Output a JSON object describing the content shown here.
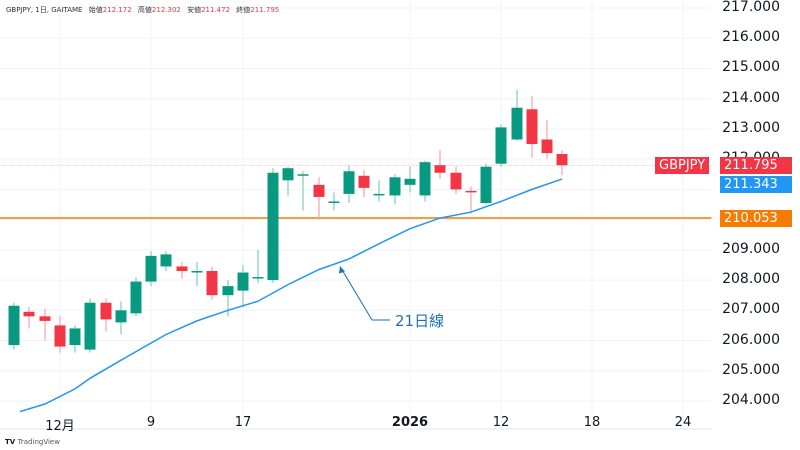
{
  "header": {
    "symbol": "GBPJPY, 1日, GAITAME",
    "open_label": "始値",
    "open": "212.172",
    "high_label": "高値",
    "high": "212.302",
    "low_label": "安値",
    "low": "211.472",
    "close_label": "終値",
    "close": "211.795"
  },
  "tags": {
    "symbol": "GBPJPY",
    "last_price": "211.795",
    "ma_value": "211.343",
    "hline_value": "210.053"
  },
  "annotation": "21日線",
  "footer": "TradingView",
  "colors": {
    "up": "#089981",
    "down": "#f23645",
    "ma": "#2196f3",
    "hline": "#f57c00",
    "grid": "#f0f3fa"
  },
  "chart_data": {
    "type": "candlestick",
    "title": "GBPJPY, 1日, GAITAME",
    "xlabel": "",
    "ylabel": "",
    "ylim": [
      203.6,
      217.2
    ],
    "yticks": [
      "217.000",
      "216.000",
      "215.000",
      "214.000",
      "213.000",
      "212.000",
      "211.000",
      "210.000",
      "209.000",
      "208.000",
      "207.000",
      "206.000",
      "205.000",
      "204.000"
    ],
    "xticks": [
      {
        "label": "12月",
        "x": 60
      },
      {
        "label": "9",
        "x": 151
      },
      {
        "label": "17",
        "x": 243
      },
      {
        "label": "2026",
        "x": 410,
        "bold": true
      },
      {
        "label": "12",
        "x": 501
      },
      {
        "label": "18",
        "x": 592
      },
      {
        "label": "24",
        "x": 683
      }
    ],
    "candles": [
      {
        "x": 14,
        "o": 205.85,
        "h": 207.25,
        "l": 205.7,
        "c": 207.15
      },
      {
        "x": 29,
        "o": 206.95,
        "h": 207.1,
        "l": 206.4,
        "c": 206.8
      },
      {
        "x": 45,
        "o": 206.8,
        "h": 207.05,
        "l": 206.0,
        "c": 206.65
      },
      {
        "x": 60,
        "o": 206.5,
        "h": 206.8,
        "l": 205.6,
        "c": 205.8
      },
      {
        "x": 75,
        "o": 205.85,
        "h": 206.5,
        "l": 205.6,
        "c": 206.4
      },
      {
        "x": 90,
        "o": 205.7,
        "h": 207.4,
        "l": 205.6,
        "c": 207.25
      },
      {
        "x": 106,
        "o": 207.25,
        "h": 207.4,
        "l": 206.3,
        "c": 206.7
      },
      {
        "x": 121,
        "o": 206.6,
        "h": 207.3,
        "l": 206.2,
        "c": 207.0
      },
      {
        "x": 136,
        "o": 206.9,
        "h": 208.1,
        "l": 206.8,
        "c": 207.95
      },
      {
        "x": 151,
        "o": 207.95,
        "h": 208.95,
        "l": 207.8,
        "c": 208.8
      },
      {
        "x": 166,
        "o": 208.45,
        "h": 208.95,
        "l": 208.3,
        "c": 208.85
      },
      {
        "x": 182,
        "o": 208.45,
        "h": 208.6,
        "l": 208.05,
        "c": 208.3
      },
      {
        "x": 197,
        "o": 208.3,
        "h": 208.6,
        "l": 207.8,
        "c": 208.3
      },
      {
        "x": 212,
        "o": 208.3,
        "h": 208.45,
        "l": 207.35,
        "c": 207.5
      },
      {
        "x": 228,
        "o": 207.5,
        "h": 208.0,
        "l": 206.8,
        "c": 207.8
      },
      {
        "x": 243,
        "o": 207.65,
        "h": 208.5,
        "l": 207.1,
        "c": 208.25
      },
      {
        "x": 258,
        "o": 208.1,
        "h": 209.0,
        "l": 207.9,
        "c": 208.1
      },
      {
        "x": 273,
        "o": 208.0,
        "h": 211.7,
        "l": 207.9,
        "c": 211.55
      },
      {
        "x": 288,
        "o": 211.3,
        "h": 211.75,
        "l": 210.8,
        "c": 211.7
      },
      {
        "x": 303,
        "o": 211.5,
        "h": 211.6,
        "l": 210.3,
        "c": 211.5
      },
      {
        "x": 319,
        "o": 211.15,
        "h": 211.4,
        "l": 210.0,
        "c": 210.75
      },
      {
        "x": 334,
        "o": 210.6,
        "h": 210.9,
        "l": 210.3,
        "c": 210.6
      },
      {
        "x": 349,
        "o": 210.85,
        "h": 211.8,
        "l": 210.55,
        "c": 211.6
      },
      {
        "x": 364,
        "o": 211.45,
        "h": 211.65,
        "l": 210.75,
        "c": 211.05
      },
      {
        "x": 379,
        "o": 210.85,
        "h": 211.3,
        "l": 210.6,
        "c": 210.85
      },
      {
        "x": 395,
        "o": 210.8,
        "h": 211.5,
        "l": 210.5,
        "c": 211.4
      },
      {
        "x": 410,
        "o": 211.15,
        "h": 211.75,
        "l": 210.9,
        "c": 211.35
      },
      {
        "x": 425,
        "o": 210.8,
        "h": 211.95,
        "l": 210.6,
        "c": 211.9
      },
      {
        "x": 440,
        "o": 211.8,
        "h": 212.3,
        "l": 211.35,
        "c": 211.55
      },
      {
        "x": 456,
        "o": 211.55,
        "h": 211.75,
        "l": 210.85,
        "c": 211.0
      },
      {
        "x": 471,
        "o": 210.95,
        "h": 211.1,
        "l": 210.2,
        "c": 210.9
      },
      {
        "x": 486,
        "o": 210.55,
        "h": 211.85,
        "l": 210.5,
        "c": 211.75
      },
      {
        "x": 501,
        "o": 211.85,
        "h": 213.15,
        "l": 211.75,
        "c": 213.05
      },
      {
        "x": 517,
        "o": 212.65,
        "h": 214.3,
        "l": 212.6,
        "c": 213.7
      },
      {
        "x": 532,
        "o": 213.65,
        "h": 214.1,
        "l": 212.05,
        "c": 212.5
      },
      {
        "x": 547,
        "o": 212.65,
        "h": 213.3,
        "l": 212.0,
        "c": 212.2
      },
      {
        "x": 562,
        "o": 212.17,
        "h": 212.3,
        "l": 211.47,
        "c": 211.8
      }
    ],
    "ma21": [
      [
        20,
        203.65
      ],
      [
        45,
        203.9
      ],
      [
        75,
        204.4
      ],
      [
        90,
        204.75
      ],
      [
        121,
        205.35
      ],
      [
        166,
        206.2
      ],
      [
        197,
        206.65
      ],
      [
        228,
        207.0
      ],
      [
        258,
        207.3
      ],
      [
        288,
        207.85
      ],
      [
        319,
        208.35
      ],
      [
        349,
        208.7
      ],
      [
        379,
        209.2
      ],
      [
        410,
        209.7
      ],
      [
        440,
        210.05
      ],
      [
        471,
        210.25
      ],
      [
        501,
        210.6
      ],
      [
        532,
        211.0
      ],
      [
        562,
        211.34
      ]
    ],
    "hline": 210.053,
    "annotations": [
      {
        "text": "21日線",
        "target_x": 340,
        "target_y": 208.55
      }
    ]
  }
}
